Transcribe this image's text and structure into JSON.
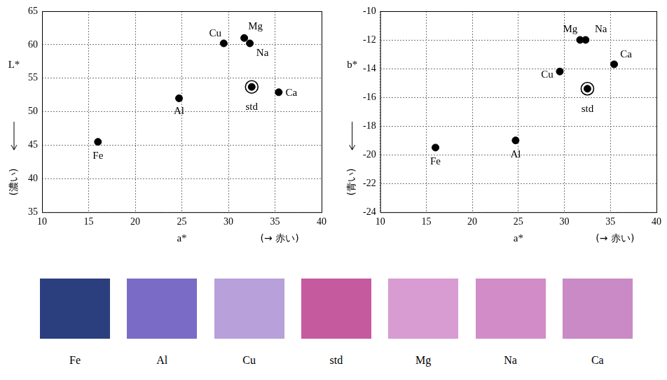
{
  "chart_data": [
    {
      "type": "scatter",
      "xlabel": "a*",
      "xlabel_note": "(→ 赤い)",
      "ylabel": "L*",
      "ylabel_note": "(濃い)",
      "xlim": [
        10,
        40
      ],
      "xticks": [
        10,
        15,
        20,
        25,
        30,
        35,
        40
      ],
      "ylim": [
        35,
        65
      ],
      "yticks": [
        35,
        40,
        45,
        50,
        55,
        60,
        65
      ],
      "grid": true,
      "series": [
        {
          "marker": "circle",
          "color": "#000000",
          "labels": [
            "Fe",
            "Al",
            "Cu",
            "Mg",
            "Na",
            "Ca"
          ],
          "x": [
            16,
            24.7,
            29.5,
            31.7,
            32.3,
            35.4
          ],
          "values": [
            45.5,
            52,
            60.2,
            61,
            60.2,
            52.9
          ]
        },
        {
          "marker": "bullseye",
          "color": "#000000",
          "labels": [
            "std"
          ],
          "x": [
            32.5
          ],
          "values": [
            53.7
          ]
        }
      ]
    },
    {
      "type": "scatter",
      "xlabel": "a*",
      "xlabel_note": "(→ 赤い)",
      "ylabel": "b*",
      "ylabel_note": "(青い)",
      "xlim": [
        10,
        40
      ],
      "xticks": [
        10,
        15,
        20,
        25,
        30,
        35,
        40
      ],
      "ylim": [
        -24,
        -10
      ],
      "yticks": [
        -24,
        -22,
        -20,
        -18,
        -16,
        -14,
        -12,
        -10
      ],
      "grid": true,
      "series": [
        {
          "marker": "circle",
          "color": "#000000",
          "labels": [
            "Fe",
            "Al",
            "Cu",
            "Mg",
            "Na",
            "Ca"
          ],
          "x": [
            16,
            24.7,
            29.5,
            31.7,
            32.3,
            35.4
          ],
          "values": [
            -19.5,
            -19,
            -14.2,
            -12,
            -12,
            -13.7
          ]
        },
        {
          "marker": "bullseye",
          "color": "#000000",
          "labels": [
            "std"
          ],
          "x": [
            32.5
          ],
          "values": [
            -15.4
          ]
        }
      ]
    }
  ],
  "swatches": [
    {
      "label": "Fe",
      "color": "#2b3f7f"
    },
    {
      "label": "Al",
      "color": "#7a6cc6"
    },
    {
      "label": "Cu",
      "color": "#b8a0da"
    },
    {
      "label": "std",
      "color": "#c65a9f"
    },
    {
      "label": "Mg",
      "color": "#d89bd2"
    },
    {
      "label": "Na",
      "color": "#d28cc8"
    },
    {
      "label": "Ca",
      "color": "#c98ac5"
    }
  ]
}
